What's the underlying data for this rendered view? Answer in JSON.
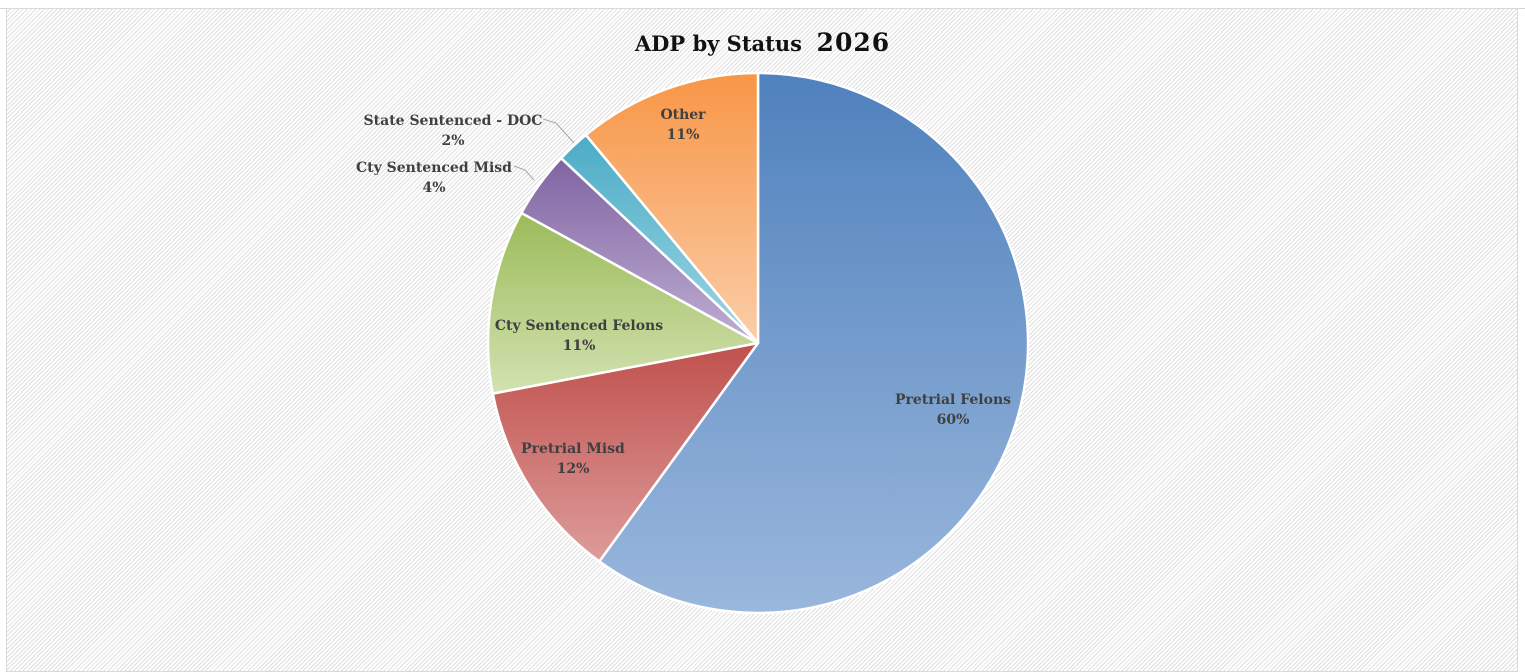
{
  "chart_data": {
    "type": "pie",
    "title": "ADP by Status",
    "title_year": "2026",
    "slices": [
      {
        "label": "Pretrial Felons",
        "value": 60,
        "display": "60%",
        "color_top": "#4f81bd",
        "color_bottom": "#9ab7dc"
      },
      {
        "label": "Pretrial Misd",
        "value": 12,
        "display": "12%",
        "color_top": "#c0504d",
        "color_bottom": "#dd9c9a"
      },
      {
        "label": "Cty Sentenced Felons",
        "value": 11,
        "display": "11%",
        "color_top": "#9bbb59",
        "color_bottom": "#d3e2b1"
      },
      {
        "label": "Cty Sentenced Misd",
        "value": 4,
        "display": "4%",
        "color_top": "#8064a2",
        "color_bottom": "#bfaed3"
      },
      {
        "label": "State Sentenced - DOC",
        "value": 2,
        "display": "2%",
        "color_top": "#4bacc6",
        "color_bottom": "#9ed6e4"
      },
      {
        "label": "Other",
        "value": 11,
        "display": "11%",
        "color_top": "#f79646",
        "color_bottom": "#fbcda8"
      }
    ],
    "start": "12 o'clock",
    "direction": "clockwise",
    "legend": "none",
    "data_labels": "category name and percentage"
  }
}
